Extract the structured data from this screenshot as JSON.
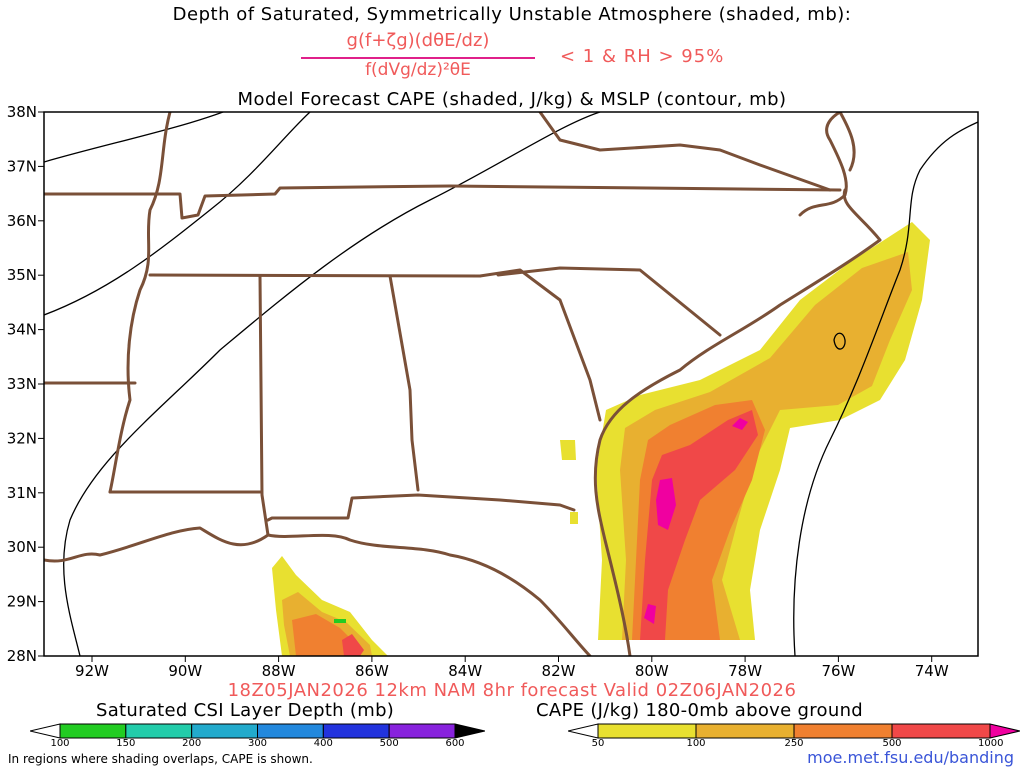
{
  "header": {
    "title_line1": "Depth of Saturated, Symmetrically Unstable Atmosphere (shaded, mb):",
    "eq_numerator": "g(f+ζg)(dθE/dz)",
    "eq_denominator": "f(dVg/dz)²θE",
    "eq_condition": "< 1 & RH > 95%",
    "title_line3": "Model Forecast CAPE (shaded, J/kg) & MSLP (contour, mb)"
  },
  "map": {
    "lat_labels": [
      "38N",
      "37N",
      "36N",
      "35N",
      "34N",
      "33N",
      "32N",
      "31N",
      "30N",
      "29N",
      "28N"
    ],
    "lon_labels": [
      "92W",
      "90W",
      "88W",
      "86W",
      "84W",
      "82W",
      "80W",
      "78W",
      "76W",
      "74W"
    ],
    "colors": {
      "border": "#7a5038",
      "contour": "#000000",
      "cape50": "#e8e030",
      "cape100": "#e8b030",
      "cape250": "#f08030",
      "cape500": "#f04848",
      "cape1000": "#f000a0"
    }
  },
  "valid_line": "18Z05JAN2026 12km NAM 8hr forecast Valid 02Z06JAN2026",
  "colorbar_csi": {
    "title": "Saturated CSI Layer Depth (mb)",
    "ticks": [
      "100",
      "150",
      "200",
      "300",
      "400",
      "500",
      "600"
    ],
    "colors": [
      "#ffffff",
      "#22cc22",
      "#22ccaa",
      "#22aacc",
      "#2288dd",
      "#2233dd",
      "#8822dd",
      "#000000"
    ]
  },
  "colorbar_cape": {
    "title": "CAPE (J/kg) 180-0mb above ground",
    "ticks": [
      "50",
      "100",
      "250",
      "500",
      "1000"
    ],
    "colors": [
      "#ffffff",
      "#e8e030",
      "#e8b030",
      "#f08030",
      "#f04848",
      "#f000a0"
    ]
  },
  "footnote": "In regions where shading overlaps, CAPE is shown.",
  "credit": "moe.met.fsu.edu/banding"
}
